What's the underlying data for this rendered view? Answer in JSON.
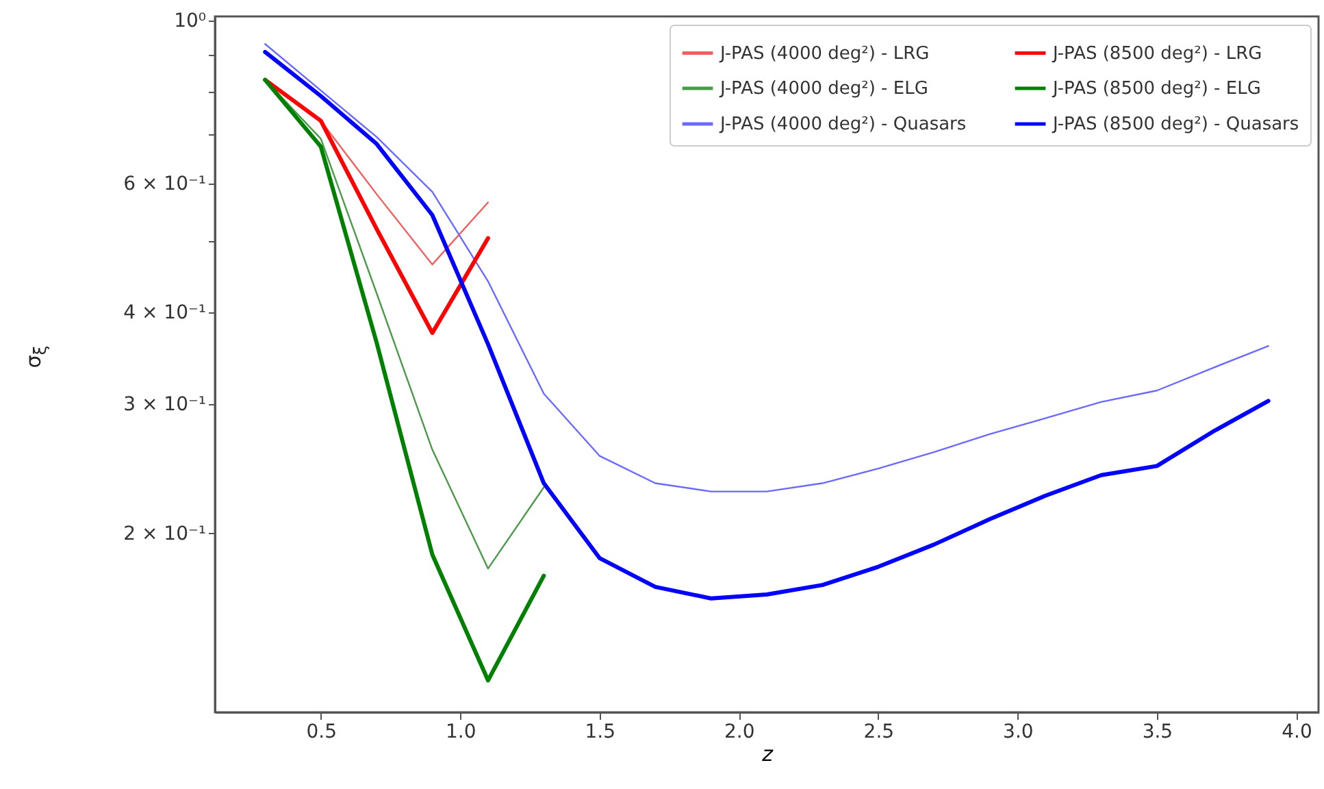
{
  "chart_data": {
    "type": "line",
    "xlabel": "z",
    "ylabel": "σ$_{ξ}$",
    "log": "y",
    "grid": false,
    "legend": "top right",
    "marker": "none",
    "line_style": "solid",
    "xlim": [
      0.12,
      4.08
    ],
    "xticks": [
      0.5,
      {
        "value": 1,
        "label": "1.0"
      },
      1.5,
      {
        "value": 2,
        "label": "2.0"
      },
      2.5,
      {
        "value": 3,
        "label": "3.0"
      },
      3.5,
      {
        "value": 4,
        "label": "4.0"
      }
    ],
    "ylim": [
      0.114,
      1.013
    ],
    "yticks": [
      {
        "value": 1,
        "label": "10⁰"
      },
      {
        "value": 0.9,
        "label": null
      },
      {
        "value": 0.8,
        "label": null
      },
      {
        "value": 0.7,
        "label": null
      },
      {
        "value": 0.6,
        "label": "6 × 10⁻¹"
      },
      {
        "value": 0.5,
        "label": null
      },
      {
        "value": 0.4,
        "label": "4 × 10⁻¹"
      },
      {
        "value": 0.3,
        "label": "3 × 10⁻¹"
      },
      {
        "value": 0.2,
        "label": "2 × 10⁻¹"
      }
    ],
    "series": [
      {
        "name": "J-PAS (4000 deg²) - LRG",
        "color": "#f06060",
        "x": [
          0.3,
          0.5,
          0.7,
          0.9,
          1.1
        ],
        "values": [
          0.83,
          0.73,
          0.58,
          0.465,
          0.565
        ]
      },
      {
        "name": "J-PAS (4000 deg²) - ELG",
        "color": "#4a9a4a",
        "x": [
          0.3,
          0.5,
          0.7,
          0.9,
          1.1,
          1.3
        ],
        "values": [
          0.83,
          0.69,
          0.425,
          0.26,
          0.179,
          0.231
        ]
      },
      {
        "name": "J-PAS (4000 deg²) - Quasars",
        "color": "#6a6aff",
        "x": [
          0.3,
          0.5,
          0.7,
          0.9,
          1.1,
          1.3,
          1.5,
          1.7,
          1.9,
          2.1,
          2.3,
          2.5,
          2.7,
          2.9,
          3.1,
          3.3,
          3.5,
          3.7,
          3.9
        ],
        "values": [
          0.929,
          0.803,
          0.694,
          0.584,
          0.441,
          0.31,
          0.255,
          0.234,
          0.228,
          0.228,
          0.234,
          0.245,
          0.258,
          0.273,
          0.287,
          0.302,
          0.313,
          0.336,
          0.36
        ]
      },
      {
        "name": "J-PAS (8500 deg²) - LRG",
        "color": "#ff0000",
        "x": [
          0.3,
          0.5,
          0.7,
          0.9,
          1.1
        ],
        "values": [
          0.83,
          0.73,
          0.52,
          0.375,
          0.505
        ]
      },
      {
        "name": "J-PAS (8500 deg²) - ELG",
        "color": "#008000",
        "x": [
          0.3,
          0.5,
          0.7,
          0.9,
          1.1,
          1.3
        ],
        "values": [
          0.83,
          0.673,
          0.364,
          0.187,
          0.126,
          0.175
        ]
      },
      {
        "name": "J-PAS (8500 deg²) - Quasars",
        "color": "#0000ff",
        "x": [
          0.3,
          0.5,
          0.7,
          0.9,
          1.1,
          1.3,
          1.5,
          1.7,
          1.9,
          2.1,
          2.3,
          2.5,
          2.7,
          2.9,
          3.1,
          3.3,
          3.5,
          3.7,
          3.9
        ],
        "values": [
          0.906,
          0.789,
          0.679,
          0.543,
          0.362,
          0.234,
          0.185,
          0.169,
          0.163,
          0.165,
          0.17,
          0.18,
          0.193,
          0.209,
          0.225,
          0.24,
          0.247,
          0.275,
          0.303
        ]
      }
    ]
  }
}
